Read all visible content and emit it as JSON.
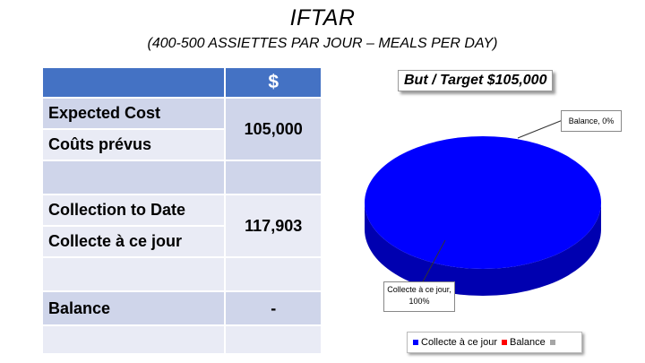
{
  "header": {
    "title": "IFTAR",
    "subtitle": "(400-500 ASSIETTES PAR JOUR – MEALS PER DAY)"
  },
  "table": {
    "currency_header": "$",
    "expected_cost_en": "Expected Cost",
    "expected_cost_fr": "Coûts prévus",
    "expected_cost_value": "105,000",
    "collection_en": "Collection to Date",
    "collection_fr": "Collecte à ce jour",
    "collection_value": "117,903",
    "balance_label": "Balance",
    "balance_value": "-"
  },
  "chart_data": {
    "type": "pie",
    "title": "But  / Target $105,000",
    "slices": [
      {
        "name": "Collecte à ce jour",
        "value": 100,
        "label": "Collecte à ce jour, 100%",
        "color": "#0000ff"
      },
      {
        "name": "Balance",
        "value": 0,
        "label": "Balance, 0%",
        "color": "#ff0000"
      }
    ],
    "legend_extra_color": "#a6a6a6",
    "legend_position": "bottom",
    "colors": {
      "top": "#0000ff",
      "side": "#0000b0"
    }
  }
}
